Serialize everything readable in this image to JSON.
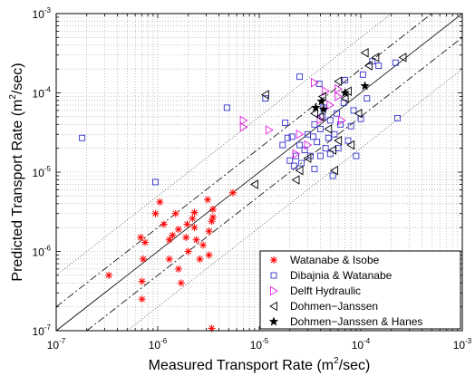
{
  "chart_data": {
    "type": "scatter",
    "xlabel_parts": [
      "Measured Transport Rate (m",
      "2",
      "/sec)"
    ],
    "ylabel_parts": [
      "Predicted Transport Rate (m",
      "2",
      "/sec)"
    ],
    "xscale": "log",
    "yscale": "log",
    "xlim": [
      1e-07,
      0.001
    ],
    "ylim": [
      1e-07,
      0.001
    ],
    "grid": "dotted",
    "legend_position": "bottom-right",
    "x_ticks": [
      {
        "base": "10",
        "exp": "-7"
      },
      {
        "base": "10",
        "exp": "-6"
      },
      {
        "base": "10",
        "exp": "-5"
      },
      {
        "base": "10",
        "exp": "-4"
      },
      {
        "base": "10",
        "exp": "-3"
      }
    ],
    "y_ticks": [
      {
        "base": "10",
        "exp": "-7"
      },
      {
        "base": "10",
        "exp": "-6"
      },
      {
        "base": "10",
        "exp": "-5"
      },
      {
        "base": "10",
        "exp": "-4"
      },
      {
        "base": "10",
        "exp": "-3"
      }
    ],
    "reference_lines": [
      {
        "style": "solid",
        "factor": 1
      },
      {
        "style": "dashdot",
        "factor": 2
      },
      {
        "style": "dashdot",
        "factor": 0.5
      },
      {
        "style": "dotted",
        "factor": 5
      },
      {
        "style": "dotted",
        "factor": 0.2
      }
    ],
    "series": [
      {
        "name": "Watanabe & Isobe",
        "marker": "asterisk",
        "color": "#ff0000",
        "points": [
          [
            3.3e-07,
            5e-07
          ],
          [
            6.8e-07,
            1.5e-06
          ],
          [
            7e-07,
            4.2e-07
          ],
          [
            7e-07,
            2.5e-07
          ],
          [
            7.2e-07,
            8e-07
          ],
          [
            7.5e-07,
            1.3e-06
          ],
          [
            9.5e-07,
            3e-06
          ],
          [
            1.05e-06,
            4.2e-06
          ],
          [
            1.15e-06,
            2.2e-06
          ],
          [
            1.3e-06,
            1.4e-06
          ],
          [
            1.3e-06,
            8e-07
          ],
          [
            1.4e-06,
            1.6e-06
          ],
          [
            1.5e-06,
            3e-06
          ],
          [
            1.6e-06,
            1.9e-06
          ],
          [
            1.6e-06,
            6e-07
          ],
          [
            1.7e-06,
            4e-07
          ],
          [
            1.9e-06,
            1.5e-06
          ],
          [
            1.95e-06,
            2.2e-06
          ],
          [
            2e-06,
            1e-06
          ],
          [
            2.2e-06,
            2.6e-06
          ],
          [
            2.3e-06,
            3.1e-06
          ],
          [
            2.3e-06,
            2e-06
          ],
          [
            2.4e-06,
            1.4e-06
          ],
          [
            2.6e-06,
            8e-07
          ],
          [
            2.8e-06,
            1.2e-06
          ],
          [
            3.1e-06,
            4.5e-06
          ],
          [
            3.2e-06,
            1.8e-06
          ],
          [
            3.4e-06,
            2.4e-06
          ],
          [
            3.5e-06,
            2.7e-06
          ],
          [
            3.2e-06,
            9e-07
          ],
          [
            3.5e-06,
            3.4e-06
          ],
          [
            3.4e-06,
            1.07e-07
          ],
          [
            5.5e-06,
            5.5e-06
          ]
        ]
      },
      {
        "name": "Dibajnia & Watanabe",
        "marker": "square",
        "color": "#3333cc",
        "points": [
          [
            1.8e-07,
            2.7e-05
          ],
          [
            9.5e-07,
            7.5e-06
          ],
          [
            4.8e-06,
            6.5e-05
          ],
          [
            1.15e-05,
            8.5e-05
          ],
          [
            1.7e-05,
            2.2e-05
          ],
          [
            1.8e-05,
            4.2e-05
          ],
          [
            1.9e-05,
            2.7e-05
          ],
          [
            2e-05,
            1.4e-05
          ],
          [
            2.1e-05,
            2.8e-05
          ],
          [
            2.2e-05,
            1.2e-05
          ],
          [
            2.3e-05,
            1.6e-05
          ],
          [
            2.5e-05,
            2.2e-05
          ],
          [
            2.6e-05,
            1.3e-05
          ],
          [
            2.8e-05,
            1.9e-05
          ],
          [
            3e-05,
            3e-05
          ],
          [
            3.2e-05,
            1.6e-05
          ],
          [
            3.4e-05,
            2.8e-05
          ],
          [
            3.5e-05,
            4e-05
          ],
          [
            3.5e-05,
            1.1e-05
          ],
          [
            3.7e-05,
            2.4e-05
          ],
          [
            3.9e-05,
            0.00013
          ],
          [
            4e-05,
            3.5e-05
          ],
          [
            4e-05,
            1.6e-05
          ],
          [
            4.2e-05,
            5e-05
          ],
          [
            4.3e-05,
            6.5e-05
          ],
          [
            4.5e-05,
            2e-05
          ],
          [
            4.8e-05,
            2.7e-05
          ],
          [
            5e-05,
            4.5e-05
          ],
          [
            5e-05,
            1.7e-05
          ],
          [
            5.3e-05,
            9e-06
          ],
          [
            5.5e-05,
            3e-05
          ],
          [
            5.8e-05,
            5.5e-05
          ],
          [
            6e-05,
            2e-05
          ],
          [
            6.3e-05,
            4e-05
          ],
          [
            6.8e-05,
            7.5e-05
          ],
          [
            7e-05,
            0.000145
          ],
          [
            7.5e-05,
            2.5e-05
          ],
          [
            8e-05,
            3.8e-05
          ],
          [
            8.5e-05,
            6e-05
          ],
          [
            9e-05,
            1.6e-05
          ],
          [
            0.0001,
            4.7e-05
          ],
          [
            0.000105,
            0.00017
          ],
          [
            0.000115,
            8.5e-05
          ],
          [
            0.00013,
            0.00025
          ],
          [
            0.00015,
            0.00022
          ],
          [
            0.00022,
            0.00024
          ],
          [
            0.00023,
            4.8e-05
          ],
          [
            2.5e-05,
            0.00016
          ]
        ]
      },
      {
        "name": "Delft Hydraulic",
        "marker": "triangle-right",
        "color": "#e020e0",
        "points": [
          [
            7e-06,
            4.5e-05
          ],
          [
            7e-06,
            3.7e-05
          ],
          [
            1.25e-05,
            3.4e-05
          ],
          [
            2.3e-05,
            1.7e-05
          ],
          [
            2.5e-05,
            3e-05
          ],
          [
            3e-05,
            2.2e-05
          ],
          [
            3.5e-05,
            0.000135
          ],
          [
            4e-05,
            4.6e-05
          ],
          [
            4.5e-05,
            0.000105
          ],
          [
            5e-05,
            7e-05
          ],
          [
            6e-05,
            9e-05
          ],
          [
            6e-05,
            0.000112
          ],
          [
            6.5e-05,
            4.5e-05
          ]
        ]
      },
      {
        "name": "Dohmen−Janssen",
        "marker": "triangle-left",
        "color": "#000000",
        "points": [
          [
            9e-06,
            7e-06
          ],
          [
            1.15e-05,
            9.5e-05
          ],
          [
            2.3e-05,
            8e-06
          ],
          [
            2.5e-05,
            1.05e-05
          ],
          [
            3e-05,
            1.5e-05
          ],
          [
            3.5e-05,
            5.5e-05
          ],
          [
            4e-05,
            5e-05
          ],
          [
            4.2e-05,
            9e-05
          ],
          [
            4.8e-05,
            3.5e-05
          ],
          [
            5.3e-05,
            1.9e-05
          ],
          [
            5.5e-05,
            1.05e-05
          ],
          [
            6e-05,
            0.00014
          ],
          [
            6e-05,
            2.5e-05
          ],
          [
            7e-05,
            8.5e-05
          ],
          [
            7.5e-05,
            0.000105
          ],
          [
            8e-05,
            2.2e-05
          ],
          [
            9.5e-05,
            5.5e-05
          ],
          [
            0.00011,
            0.00032
          ],
          [
            0.00012,
            0.00022
          ],
          [
            0.00014,
            0.00028
          ],
          [
            0.00026,
            0.00028
          ]
        ]
      },
      {
        "name": "Dohmen−Janssen & Hanes",
        "marker": "star",
        "color": "#000000",
        "points": [
          [
            3.6e-05,
            6.5e-05
          ],
          [
            4.1e-05,
            7.8e-05
          ],
          [
            4.3e-05,
            6.2e-05
          ],
          [
            7e-05,
            0.0001
          ],
          [
            0.00011,
            0.000122
          ]
        ]
      }
    ]
  }
}
